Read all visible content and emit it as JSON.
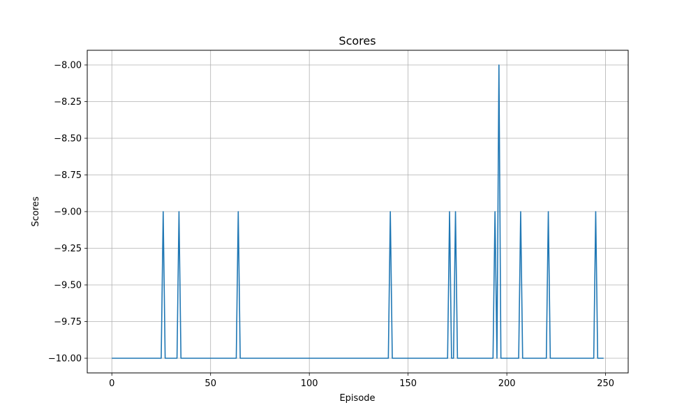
{
  "chart_data": {
    "type": "line",
    "title": "Scores",
    "xlabel": "Episode",
    "ylabel": "Scores",
    "xlim": [
      -12.45,
      261.45
    ],
    "ylim": [
      -10.1,
      -7.9
    ],
    "xticks": [
      0,
      50,
      100,
      150,
      200,
      250
    ],
    "yticks": [
      -10.0,
      -9.75,
      -9.5,
      -9.25,
      -9.0,
      -8.75,
      -8.5,
      -8.25,
      -8.0
    ],
    "xtick_labels": [
      "0",
      "50",
      "100",
      "150",
      "200",
      "250"
    ],
    "ytick_labels": [
      "−10.00",
      "−9.75",
      "−9.50",
      "−9.25",
      "−9.00",
      "−8.75",
      "−8.50",
      "−8.25",
      "−8.00"
    ],
    "grid": true,
    "line_color": "#1f77b4",
    "series": [
      {
        "n_episodes": 250,
        "baseline": -10,
        "spikes": [
          {
            "x": 26,
            "y": -9
          },
          {
            "x": 34,
            "y": -9
          },
          {
            "x": 64,
            "y": -9
          },
          {
            "x": 141,
            "y": -9
          },
          {
            "x": 171,
            "y": -9
          },
          {
            "x": 174,
            "y": -9
          },
          {
            "x": 194,
            "y": -9
          },
          {
            "x": 196,
            "y": -8
          },
          {
            "x": 207,
            "y": -9
          },
          {
            "x": 221,
            "y": -9
          },
          {
            "x": 245,
            "y": -9
          }
        ]
      }
    ]
  }
}
